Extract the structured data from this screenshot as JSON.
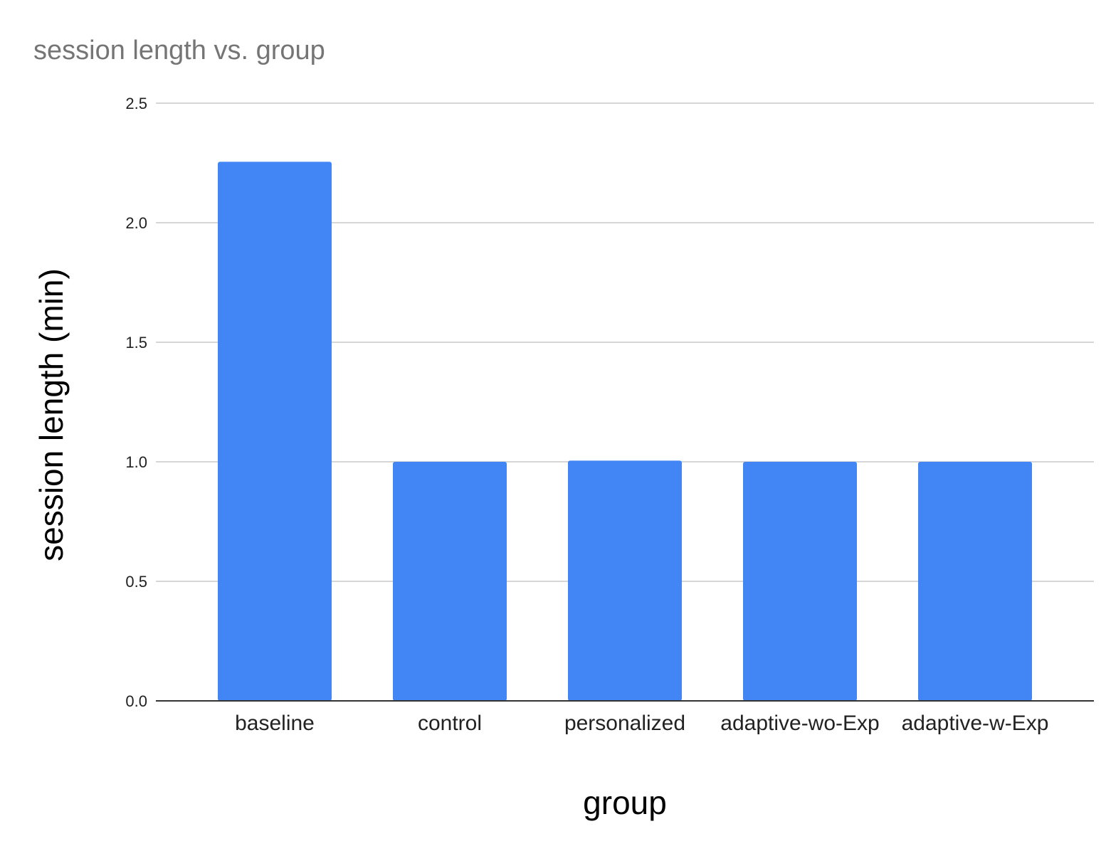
{
  "chart_data": {
    "type": "bar",
    "title": "session length vs. group",
    "xlabel": "group",
    "ylabel": "session length (min)",
    "categories": [
      "baseline",
      "control",
      "personalized",
      "adaptive-wo-Exp",
      "adaptive-w-Exp"
    ],
    "values": [
      2.255,
      1.0,
      1.005,
      1.0,
      1.0
    ],
    "ylim": [
      0,
      2.5
    ],
    "yticks": [
      "0.0",
      "0.5",
      "1.0",
      "1.5",
      "2.0",
      "2.5"
    ],
    "grid": true,
    "legend": "none",
    "bar_color": "#4285f4"
  }
}
